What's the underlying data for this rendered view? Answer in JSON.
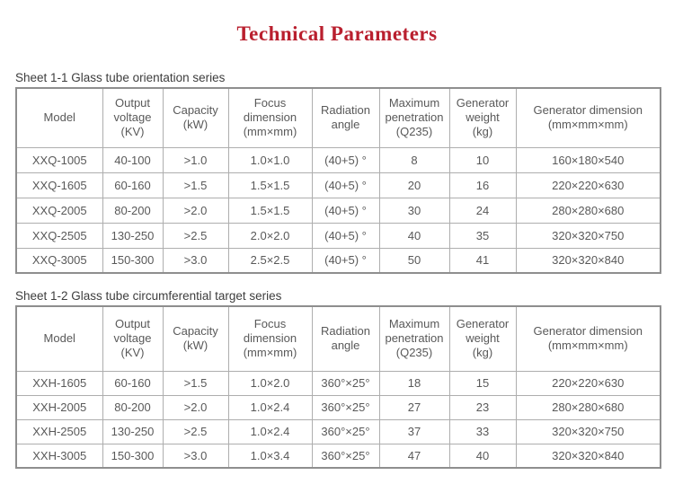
{
  "page": {
    "title": "Technical Parameters"
  },
  "colors": {
    "title_red": "#b91f2e",
    "table_text_gray": "#595959",
    "label_gray": "#3d3d3d",
    "border_outer": "#8e8e8e",
    "border_inner": "#aeaeae"
  },
  "tables": [
    {
      "caption": "Sheet 1-1 Glass tube orientation series",
      "headers": [
        "Model",
        "Output\nvoltage\n(KV)",
        "Capacity\n(kW)",
        "Focus\ndimension\n(mm×mm)",
        "Radiation\nangle",
        "Maximum\npenetration\n(Q235)",
        "Generator\nweight\n(kg)",
        "Generator dimension\n(mm×mm×mm)"
      ],
      "rows": [
        [
          "XXQ-1005",
          "40-100",
          ">1.0",
          "1.0×1.0",
          "(40+5) °",
          "8",
          "10",
          "160×180×540"
        ],
        [
          "XXQ-1605",
          "60-160",
          ">1.5",
          "1.5×1.5",
          "(40+5) °",
          "20",
          "16",
          "220×220×630"
        ],
        [
          "XXQ-2005",
          "80-200",
          ">2.0",
          "1.5×1.5",
          "(40+5) °",
          "30",
          "24",
          "280×280×680"
        ],
        [
          "XXQ-2505",
          "130-250",
          ">2.5",
          "2.0×2.0",
          "(40+5) °",
          "40",
          "35",
          "320×320×750"
        ],
        [
          "XXQ-3005",
          "150-300",
          ">3.0",
          "2.5×2.5",
          "(40+5) °",
          "50",
          "41",
          "320×320×840"
        ]
      ]
    },
    {
      "caption": "Sheet 1-2 Glass tube circumferential target series",
      "headers": [
        "Model",
        "Output\nvoltage\n(KV)",
        "Capacity\n(kW)",
        "Focus\ndimension\n(mm×mm)",
        "Radiation\nangle",
        "Maximum\npenetration\n(Q235)",
        "Generator\nweight\n(kg)",
        "Generator dimension\n(mm×mm×mm)"
      ],
      "rows": [
        [
          "XXH-1605",
          "60-160",
          ">1.5",
          "1.0×2.0",
          "360°×25°",
          "18",
          "15",
          "220×220×630"
        ],
        [
          "XXH-2005",
          "80-200",
          ">2.0",
          "1.0×2.4",
          "360°×25°",
          "27",
          "23",
          "280×280×680"
        ],
        [
          "XXH-2505",
          "130-250",
          ">2.5",
          "1.0×2.4",
          "360°×25°",
          "37",
          "33",
          "320×320×750"
        ],
        [
          "XXH-3005",
          "150-300",
          ">3.0",
          "1.0×3.4",
          "360°×25°",
          "47",
          "40",
          "320×320×840"
        ]
      ]
    }
  ]
}
